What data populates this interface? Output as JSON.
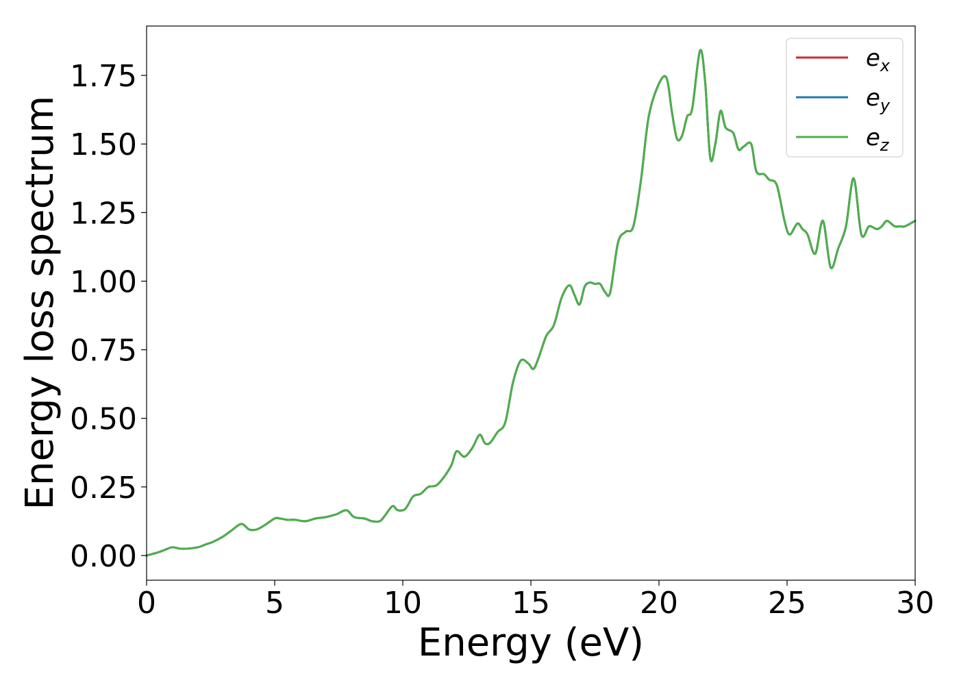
{
  "chart_data": {
    "type": "line",
    "xlabel": "Energy (eV)",
    "ylabel": "Energy loss spectrum",
    "xlim": [
      0,
      30
    ],
    "ylim": [
      -0.09,
      1.93
    ],
    "xticks": [
      "0",
      "5",
      "10",
      "15",
      "20",
      "25",
      "30"
    ],
    "yticks": [
      "0.00",
      "0.25",
      "0.50",
      "0.75",
      "1.00",
      "1.25",
      "1.50",
      "1.75"
    ],
    "grid": false,
    "legend_position": "top-right",
    "series": [
      {
        "name": "e_x",
        "legend_base": "e",
        "legend_sub": "x",
        "color": "#d62728",
        "x": [
          0,
          0.4,
          0.7,
          1.0,
          1.3,
          1.6,
          2.0,
          2.3,
          2.6,
          3.0,
          3.3,
          3.7,
          4.0,
          4.3,
          4.6,
          5.0,
          5.2,
          5.5,
          5.8,
          6.2,
          6.6,
          7.0,
          7.4,
          7.8,
          8.1,
          8.5,
          8.8,
          9.1,
          9.3,
          9.6,
          9.8,
          10.1,
          10.4,
          10.7,
          11.0,
          11.3,
          11.6,
          11.9,
          12.1,
          12.4,
          12.7,
          13.0,
          13.2,
          13.4,
          13.7,
          14.0,
          14.3,
          14.6,
          14.9,
          15.1,
          15.3,
          15.6,
          15.9,
          16.2,
          16.5,
          16.7,
          16.9,
          17.1,
          17.3,
          17.5,
          17.7,
          17.9,
          18.1,
          18.4,
          18.7,
          19.0,
          19.3,
          19.6,
          20.0,
          20.3,
          20.5,
          20.7,
          20.9,
          21.1,
          21.3,
          21.6,
          21.8,
          22.0,
          22.2,
          22.4,
          22.6,
          22.9,
          23.1,
          23.3,
          23.6,
          23.8,
          24.1,
          24.3,
          24.6,
          24.9,
          25.1,
          25.4,
          25.6,
          25.8,
          26.1,
          26.4,
          26.7,
          27.0,
          27.3,
          27.6,
          27.9,
          28.2,
          28.5,
          28.7,
          28.9,
          29.2,
          29.4,
          29.6,
          30.0
        ],
        "y": [
          0.0,
          0.01,
          0.02,
          0.03,
          0.025,
          0.025,
          0.03,
          0.04,
          0.05,
          0.07,
          0.09,
          0.115,
          0.095,
          0.095,
          0.11,
          0.135,
          0.135,
          0.13,
          0.13,
          0.125,
          0.135,
          0.14,
          0.15,
          0.165,
          0.14,
          0.135,
          0.125,
          0.125,
          0.145,
          0.18,
          0.165,
          0.17,
          0.215,
          0.225,
          0.25,
          0.255,
          0.285,
          0.33,
          0.38,
          0.36,
          0.39,
          0.44,
          0.41,
          0.41,
          0.45,
          0.485,
          0.63,
          0.71,
          0.7,
          0.68,
          0.72,
          0.8,
          0.84,
          0.94,
          0.985,
          0.95,
          0.915,
          0.98,
          0.995,
          0.99,
          0.99,
          0.96,
          0.96,
          1.14,
          1.18,
          1.2,
          1.37,
          1.6,
          1.72,
          1.74,
          1.62,
          1.52,
          1.53,
          1.6,
          1.63,
          1.84,
          1.73,
          1.45,
          1.5,
          1.62,
          1.56,
          1.54,
          1.48,
          1.49,
          1.5,
          1.4,
          1.39,
          1.37,
          1.35,
          1.22,
          1.17,
          1.21,
          1.19,
          1.17,
          1.1,
          1.22,
          1.05,
          1.12,
          1.2,
          1.375,
          1.17,
          1.2,
          1.19,
          1.2,
          1.22,
          1.2,
          1.2,
          1.2,
          1.22
        ]
      },
      {
        "name": "e_y",
        "legend_base": "e",
        "legend_sub": "y",
        "color": "#1f77b4",
        "x": [
          0,
          0.4,
          0.7,
          1.0,
          1.3,
          1.6,
          2.0,
          2.3,
          2.6,
          3.0,
          3.3,
          3.7,
          4.0,
          4.3,
          4.6,
          5.0,
          5.2,
          5.5,
          5.8,
          6.2,
          6.6,
          7.0,
          7.4,
          7.8,
          8.1,
          8.5,
          8.8,
          9.1,
          9.3,
          9.6,
          9.8,
          10.1,
          10.4,
          10.7,
          11.0,
          11.3,
          11.6,
          11.9,
          12.1,
          12.4,
          12.7,
          13.0,
          13.2,
          13.4,
          13.7,
          14.0,
          14.3,
          14.6,
          14.9,
          15.1,
          15.3,
          15.6,
          15.9,
          16.2,
          16.5,
          16.7,
          16.9,
          17.1,
          17.3,
          17.5,
          17.7,
          17.9,
          18.1,
          18.4,
          18.7,
          19.0,
          19.3,
          19.6,
          20.0,
          20.3,
          20.5,
          20.7,
          20.9,
          21.1,
          21.3,
          21.6,
          21.8,
          22.0,
          22.2,
          22.4,
          22.6,
          22.9,
          23.1,
          23.3,
          23.6,
          23.8,
          24.1,
          24.3,
          24.6,
          24.9,
          25.1,
          25.4,
          25.6,
          25.8,
          26.1,
          26.4,
          26.7,
          27.0,
          27.3,
          27.6,
          27.9,
          28.2,
          28.5,
          28.7,
          28.9,
          29.2,
          29.4,
          29.6,
          30.0
        ],
        "y": [
          0.0,
          0.01,
          0.02,
          0.03,
          0.025,
          0.025,
          0.03,
          0.04,
          0.05,
          0.07,
          0.09,
          0.115,
          0.095,
          0.095,
          0.11,
          0.135,
          0.135,
          0.13,
          0.13,
          0.125,
          0.135,
          0.14,
          0.15,
          0.165,
          0.14,
          0.135,
          0.125,
          0.125,
          0.145,
          0.18,
          0.165,
          0.17,
          0.215,
          0.225,
          0.25,
          0.255,
          0.285,
          0.33,
          0.38,
          0.36,
          0.39,
          0.44,
          0.41,
          0.41,
          0.45,
          0.485,
          0.63,
          0.71,
          0.7,
          0.68,
          0.72,
          0.8,
          0.84,
          0.94,
          0.985,
          0.95,
          0.915,
          0.98,
          0.995,
          0.99,
          0.99,
          0.96,
          0.96,
          1.14,
          1.18,
          1.2,
          1.37,
          1.6,
          1.72,
          1.74,
          1.62,
          1.52,
          1.53,
          1.6,
          1.63,
          1.84,
          1.73,
          1.45,
          1.5,
          1.62,
          1.56,
          1.54,
          1.48,
          1.49,
          1.5,
          1.4,
          1.39,
          1.37,
          1.35,
          1.22,
          1.17,
          1.21,
          1.19,
          1.17,
          1.1,
          1.22,
          1.05,
          1.12,
          1.2,
          1.375,
          1.17,
          1.2,
          1.19,
          1.2,
          1.22,
          1.2,
          1.2,
          1.2,
          1.22
        ]
      },
      {
        "name": "e_z",
        "legend_base": "e",
        "legend_sub": "z",
        "color": "#4daf4a",
        "x": [
          0,
          0.4,
          0.7,
          1.0,
          1.3,
          1.6,
          2.0,
          2.3,
          2.6,
          3.0,
          3.3,
          3.7,
          4.0,
          4.3,
          4.6,
          5.0,
          5.2,
          5.5,
          5.8,
          6.2,
          6.6,
          7.0,
          7.4,
          7.8,
          8.1,
          8.5,
          8.8,
          9.1,
          9.3,
          9.6,
          9.8,
          10.1,
          10.4,
          10.7,
          11.0,
          11.3,
          11.6,
          11.9,
          12.1,
          12.4,
          12.7,
          13.0,
          13.2,
          13.4,
          13.7,
          14.0,
          14.3,
          14.6,
          14.9,
          15.1,
          15.3,
          15.6,
          15.9,
          16.2,
          16.5,
          16.7,
          16.9,
          17.1,
          17.3,
          17.5,
          17.7,
          17.9,
          18.1,
          18.4,
          18.7,
          19.0,
          19.3,
          19.6,
          20.0,
          20.3,
          20.5,
          20.7,
          20.9,
          21.1,
          21.3,
          21.6,
          21.8,
          22.0,
          22.2,
          22.4,
          22.6,
          22.9,
          23.1,
          23.3,
          23.6,
          23.8,
          24.1,
          24.3,
          24.6,
          24.9,
          25.1,
          25.4,
          25.6,
          25.8,
          26.1,
          26.4,
          26.7,
          27.0,
          27.3,
          27.6,
          27.9,
          28.2,
          28.5,
          28.7,
          28.9,
          29.2,
          29.4,
          29.6,
          30.0
        ],
        "y": [
          0.0,
          0.01,
          0.02,
          0.03,
          0.025,
          0.025,
          0.03,
          0.04,
          0.05,
          0.07,
          0.09,
          0.115,
          0.095,
          0.095,
          0.11,
          0.135,
          0.135,
          0.13,
          0.13,
          0.125,
          0.135,
          0.14,
          0.15,
          0.165,
          0.14,
          0.135,
          0.125,
          0.125,
          0.145,
          0.18,
          0.165,
          0.17,
          0.215,
          0.225,
          0.25,
          0.255,
          0.285,
          0.33,
          0.38,
          0.36,
          0.39,
          0.44,
          0.41,
          0.41,
          0.45,
          0.485,
          0.63,
          0.71,
          0.7,
          0.68,
          0.72,
          0.8,
          0.84,
          0.94,
          0.985,
          0.95,
          0.915,
          0.98,
          0.995,
          0.99,
          0.99,
          0.96,
          0.96,
          1.14,
          1.18,
          1.2,
          1.37,
          1.6,
          1.72,
          1.74,
          1.62,
          1.52,
          1.53,
          1.6,
          1.63,
          1.84,
          1.73,
          1.45,
          1.5,
          1.62,
          1.56,
          1.54,
          1.48,
          1.49,
          1.5,
          1.4,
          1.39,
          1.37,
          1.35,
          1.22,
          1.17,
          1.21,
          1.19,
          1.17,
          1.1,
          1.22,
          1.05,
          1.12,
          1.2,
          1.375,
          1.17,
          1.2,
          1.19,
          1.2,
          1.22,
          1.2,
          1.2,
          1.2,
          1.22
        ]
      }
    ]
  }
}
